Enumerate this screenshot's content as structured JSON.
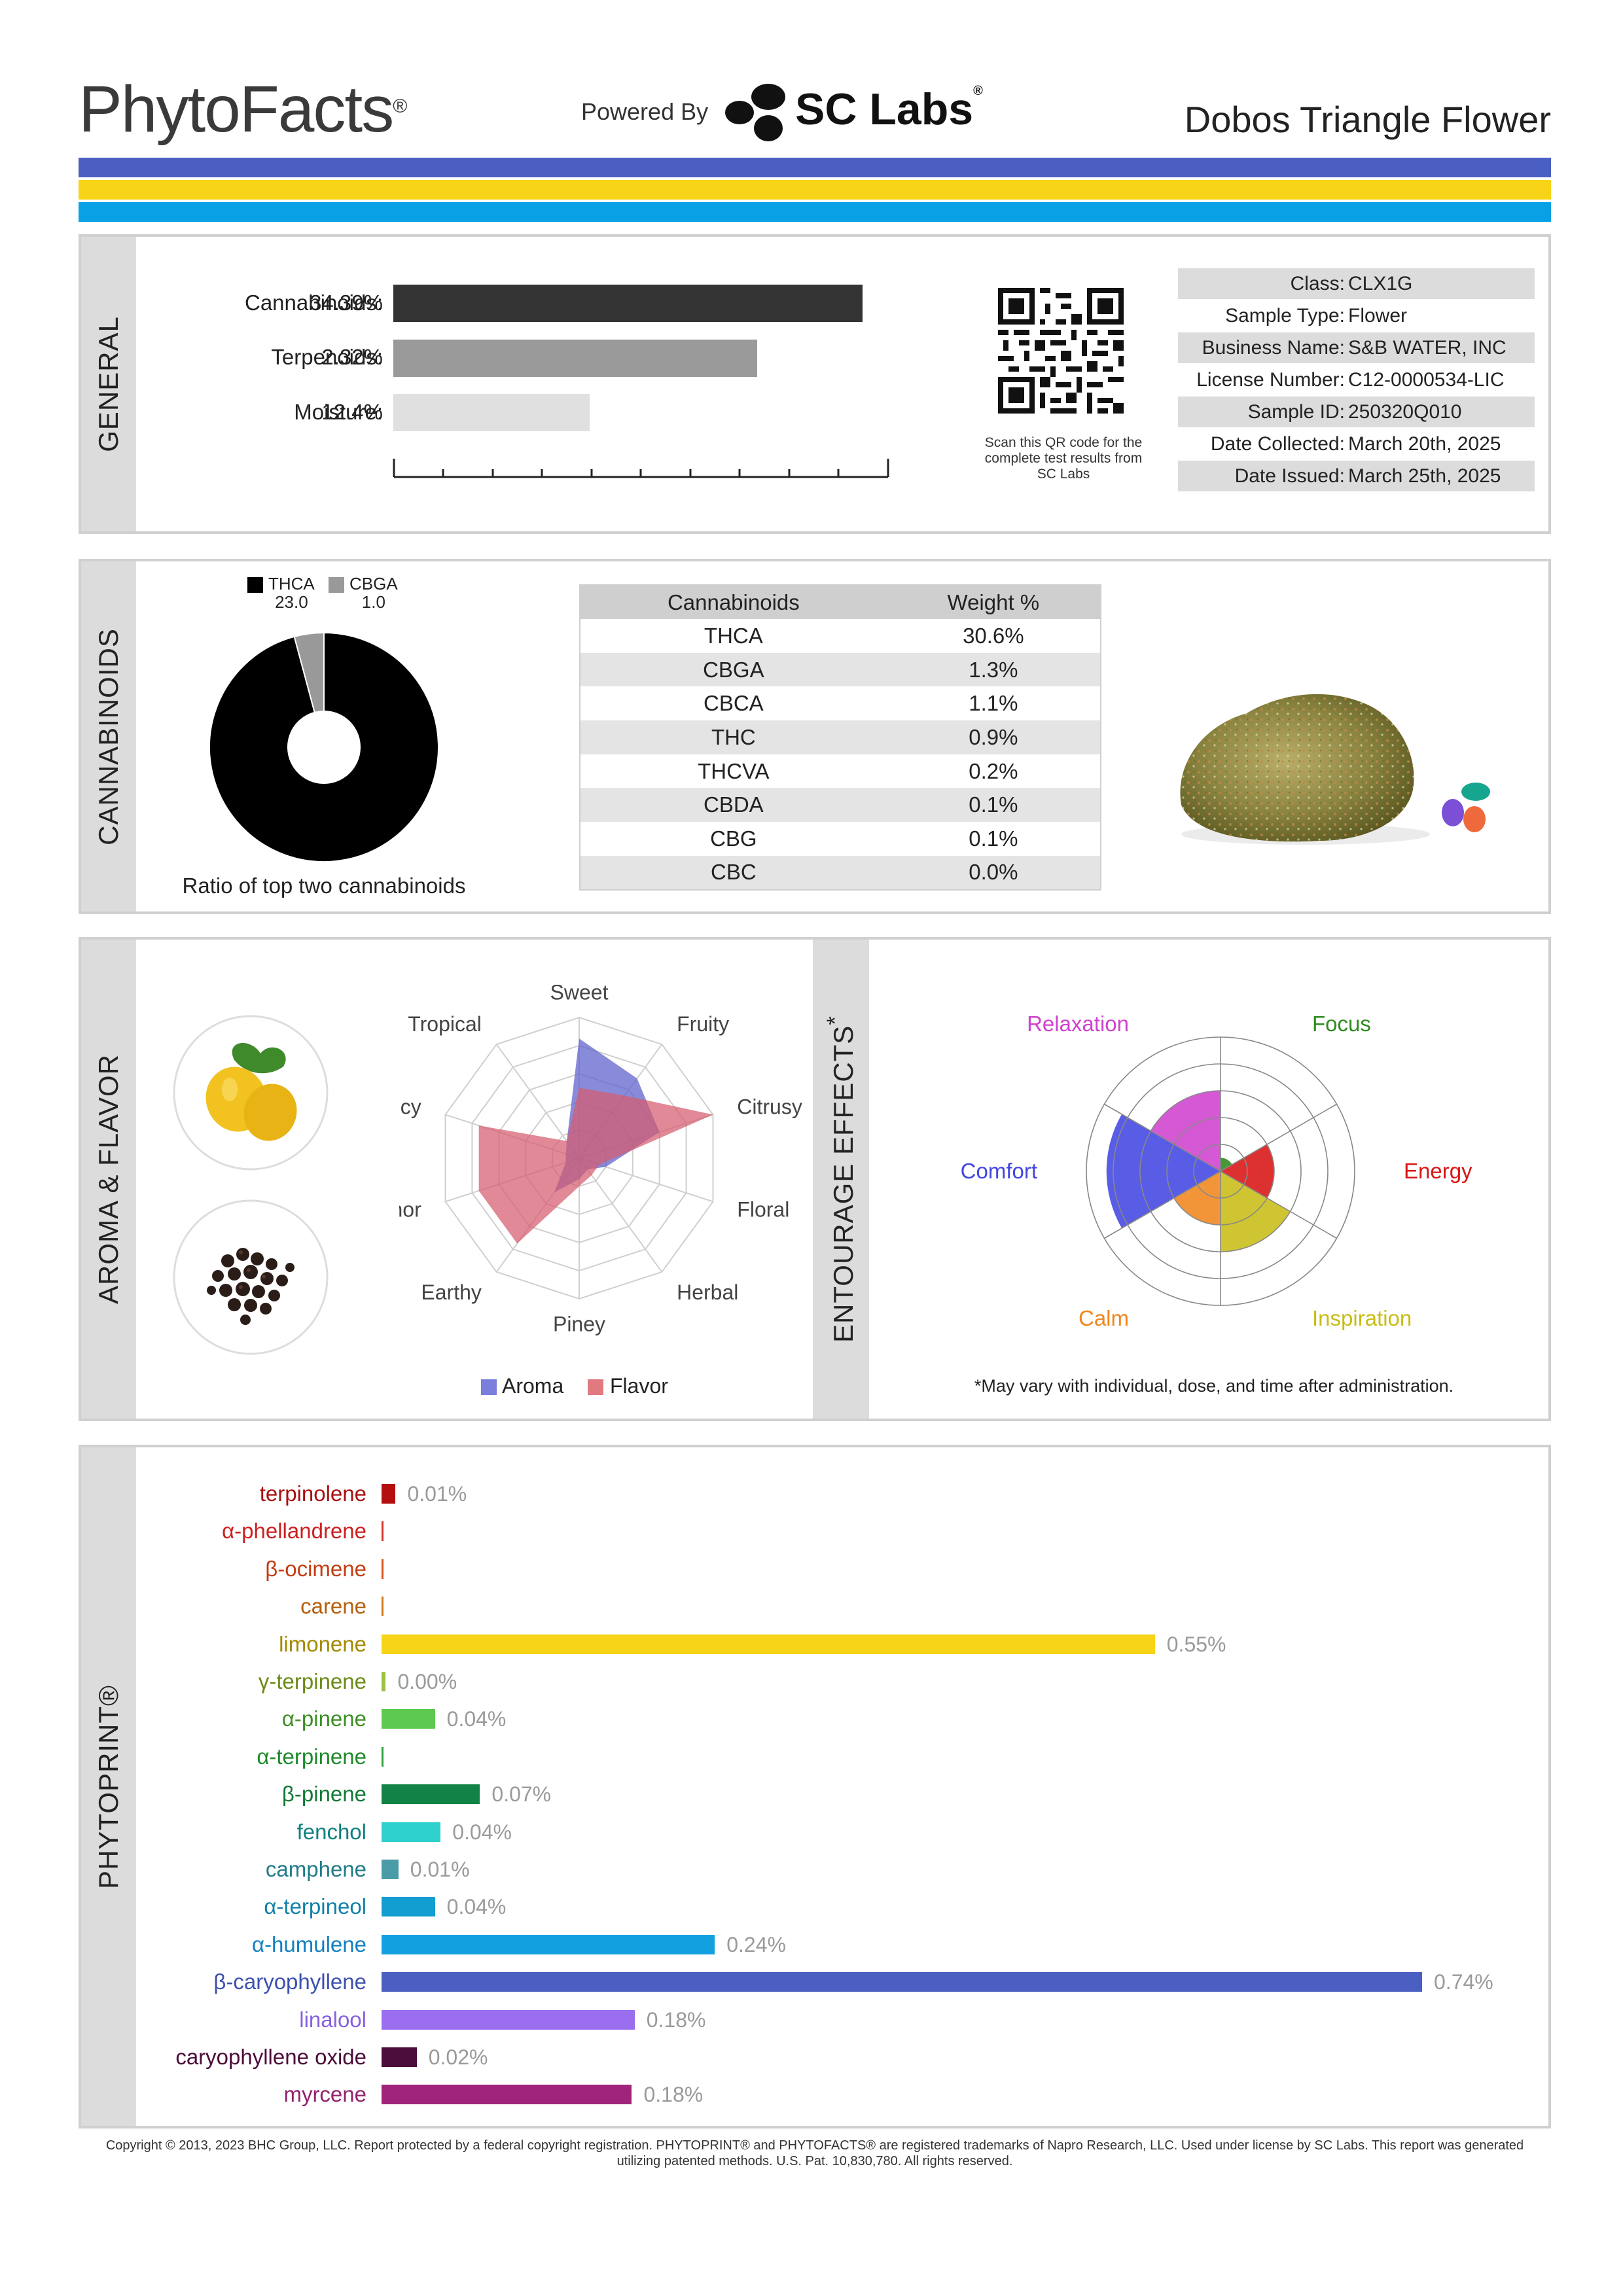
{
  "header": {
    "brand": "PhytoFacts",
    "powered_by": "Powered By",
    "lab": "SC Labs",
    "strain": "Dobos Triangle Flower"
  },
  "colors": {
    "stripe_top": "#4a5fc1",
    "stripe_mid": "#f7d417",
    "stripe_bot": "#0aa0e6"
  },
  "general": {
    "section_title": "GENERAL",
    "metrics": [
      {
        "label": "Cannabinoids:",
        "value": "34.39%",
        "fraction": 0.3439,
        "color": "#333333"
      },
      {
        "label": "Terpenoids:",
        "value": "2.32%",
        "fraction": 0.0232,
        "color": "#9a9a9a"
      },
      {
        "label": "Moisture:",
        "value": "12.4%",
        "fraction": 0.124,
        "color": "#e0e0e0"
      }
    ],
    "qr_note": "Scan this QR code for the complete test results from SC Labs",
    "info": [
      {
        "key": "Class:",
        "value": "CLX1G"
      },
      {
        "key": "Sample Type:",
        "value": "Flower"
      },
      {
        "key": "Business Name:",
        "value": "S&B WATER, INC"
      },
      {
        "key": "License Number:",
        "value": "C12-0000534-LIC"
      },
      {
        "key": "Sample ID:",
        "value": "250320Q010"
      },
      {
        "key": "Date Collected:",
        "value": "March 20th, 2025"
      },
      {
        "key": "Date Issued:",
        "value": "March 25th, 2025"
      }
    ]
  },
  "cannabinoids": {
    "section_title": "CANNABINOIDS",
    "donut": {
      "legend": [
        {
          "name": "THCA",
          "value": "23.0",
          "color": "#000000"
        },
        {
          "name": "CBGA",
          "value": "1.0",
          "color": "#999999"
        }
      ],
      "caption": "Ratio of top two cannabinoids"
    },
    "table": {
      "headers": [
        "Cannabinoids",
        "Weight %"
      ],
      "rows": [
        [
          "THCA",
          "30.6%"
        ],
        [
          "CBGA",
          "1.3%"
        ],
        [
          "CBCA",
          "1.1%"
        ],
        [
          "THC",
          "0.9%"
        ],
        [
          "THCVA",
          "0.2%"
        ],
        [
          "CBDA",
          "0.1%"
        ],
        [
          "CBG",
          "0.1%"
        ],
        [
          "CBC",
          "0.0%"
        ]
      ]
    }
  },
  "aroma": {
    "section_title": "AROMA & FLAVOR",
    "legend": [
      {
        "name": "Aroma",
        "color": "#7b7fdc"
      },
      {
        "name": "Flavor",
        "color": "#e07a7f"
      }
    ],
    "chart_data": {
      "type": "radar",
      "axes": [
        "Sweet",
        "Fruity",
        "Citrusy",
        "Floral",
        "Herbal",
        "Piney",
        "Earthy",
        "Camphor",
        "Spicy",
        "Tropical"
      ],
      "series": [
        {
          "name": "Aroma",
          "values": [
            0.85,
            0.7,
            0.6,
            0.2,
            0.1,
            0.15,
            0.3,
            0.1,
            0.1,
            0.15
          ]
        },
        {
          "name": "Flavor",
          "values": [
            0.5,
            0.55,
            1.0,
            0.15,
            0.15,
            0.2,
            0.75,
            0.75,
            0.75,
            0.15
          ]
        }
      ]
    }
  },
  "effects": {
    "section_title": "ENTOURAGE EFFECTS",
    "note": "*May vary with individual, dose, and time after administration.",
    "chart_data": {
      "type": "polar-area",
      "categories": [
        "Focus",
        "Energy",
        "Inspiration",
        "Calm",
        "Comfort",
        "Relaxation"
      ],
      "values": [
        0.1,
        0.4,
        0.6,
        0.4,
        0.85,
        0.6
      ],
      "colors": [
        "#2e8a1e",
        "#d81515",
        "#c8bd16",
        "#f0861c",
        "#4246e0",
        "#cf42cf"
      ]
    }
  },
  "phytoprint": {
    "section_title": "PHYTOPRINT®",
    "chart_data": {
      "type": "bar",
      "categories": [
        "terpinolene",
        "α-phellandrene",
        "β-ocimene",
        "carene",
        "limonene",
        "γ-terpinene",
        "α-pinene",
        "α-terpinene",
        "β-pinene",
        "fenchol",
        "camphene",
        "α-terpineol",
        "α-humulene",
        "β-caryophyllene",
        "linalool",
        "caryophyllene oxide",
        "myrcene"
      ],
      "labels": [
        "0.01%",
        "",
        "",
        "",
        "0.55%",
        "0.00%",
        "0.04%",
        "",
        "0.07%",
        "0.04%",
        "0.01%",
        "0.04%",
        "0.24%",
        "0.74%",
        "0.18%",
        "0.02%",
        "0.18%"
      ],
      "values": [
        0.01,
        0.001,
        0.001,
        0.001,
        0.55,
        0.003,
        0.038,
        0.001,
        0.07,
        0.042,
        0.012,
        0.038,
        0.237,
        0.74,
        0.18,
        0.025,
        0.178
      ],
      "colors": [
        "#b50e0e",
        "#d9342a",
        "#d9531a",
        "#d4781c",
        "#f7d417",
        "#9bc246",
        "#5dc94e",
        "#2ba43b",
        "#138246",
        "#2dd0cc",
        "#4a9ba8",
        "#129ed0",
        "#12a0e0",
        "#4a5fc1",
        "#9b6ef0",
        "#4c0d3a",
        "#a0257a"
      ],
      "name_colors": [
        "#aa0f0f",
        "#cc2020",
        "#c43d12",
        "#b6600e",
        "#a38a00",
        "#6c8a18",
        "#3c8f24",
        "#1e8a2a",
        "#127a36",
        "#108080",
        "#207c88",
        "#1080a8",
        "#1080c0",
        "#3c50b0",
        "#8860e0",
        "#4c0d3a",
        "#92226e"
      ]
    }
  },
  "copyright": "Copyright © 2013, 2023 BHC Group, LLC. Report protected by a federal copyright registration. PHYTOPRINT® and PHYTOFACTS® are registered trademarks of Napro Research, LLC. Used under license by SC Labs. This report was generated utilizing patented methods. U.S. Pat. 10,830,780. All rights reserved."
}
